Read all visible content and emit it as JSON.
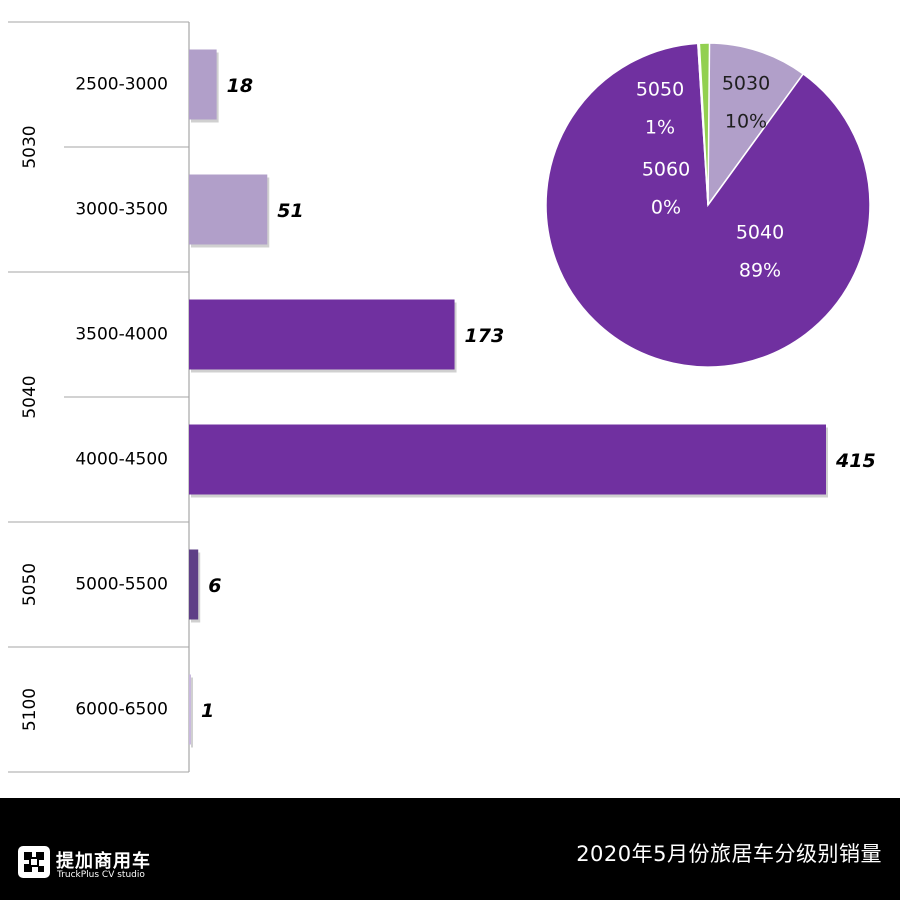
{
  "chart_data": [
    {
      "type": "bar",
      "orientation": "horizontal",
      "groups": [
        {
          "label": "5030",
          "categories": [
            "2500-3000",
            "3000-3500"
          ],
          "values": [
            18,
            51
          ],
          "color": "#b19fc9"
        },
        {
          "label": "5040",
          "categories": [
            "3500-4000",
            "4000-4500"
          ],
          "values": [
            173,
            415
          ],
          "color": "#7030a0"
        },
        {
          "label": "5050",
          "categories": [
            "5000-5500"
          ],
          "values": [
            6
          ],
          "color": "#5e3f86"
        },
        {
          "label": "5100",
          "categories": [
            "6000-6500"
          ],
          "values": [
            1
          ],
          "color": "#c9b9de"
        }
      ],
      "xlim": [
        0,
        415
      ]
    },
    {
      "type": "pie",
      "slices": [
        {
          "label": "5030",
          "value": 10,
          "text": "10%",
          "color": "#b19fc9"
        },
        {
          "label": "5040",
          "value": 89,
          "text": "89%",
          "color": "#7030a0"
        },
        {
          "label": "5050",
          "value": 1,
          "text": "1%",
          "color": "#92d050"
        },
        {
          "label": "5060",
          "value": 0,
          "text": "0%",
          "color": "#92d050"
        }
      ]
    }
  ],
  "footer": {
    "title": "2020年5月份旅居车分级别销量",
    "brand_cn": "提加商用车",
    "brand_en": "TruckPlus CV studio"
  }
}
